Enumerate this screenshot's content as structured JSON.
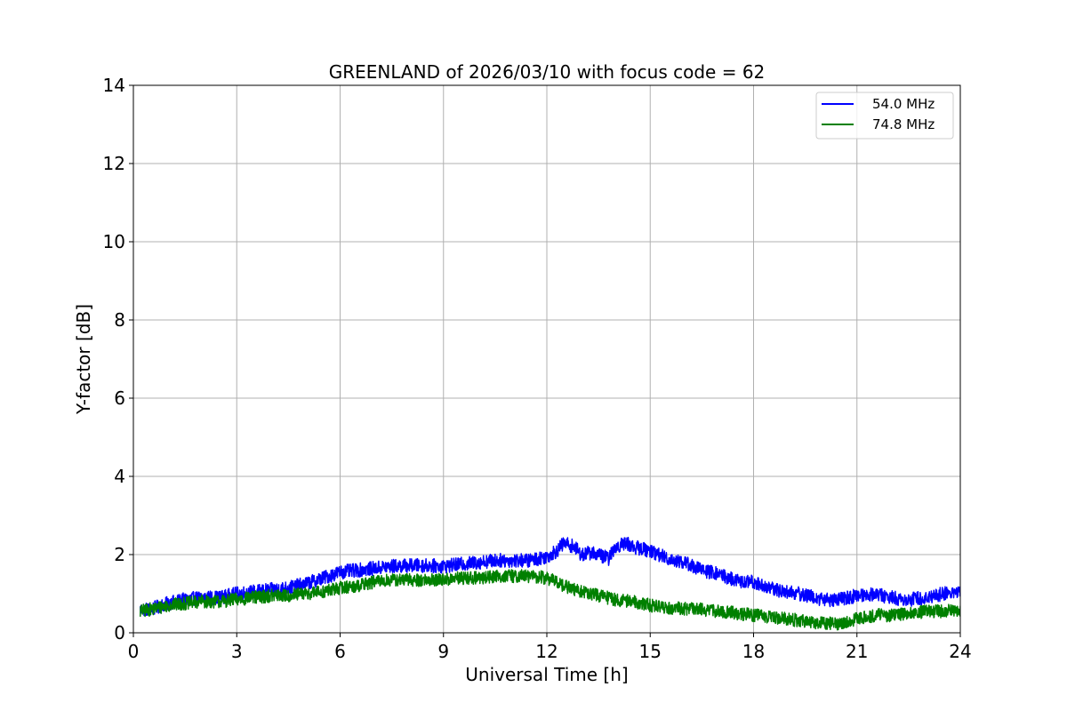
{
  "chart_data": {
    "type": "line",
    "title": "GREENLAND of 2026/03/10 with focus code = 62",
    "xlabel": "Universal Time [h]",
    "ylabel": "Y-factor [dB]",
    "xlim": [
      0,
      24
    ],
    "ylim": [
      0,
      14
    ],
    "xticks": [
      0,
      3,
      6,
      9,
      12,
      15,
      18,
      21,
      24
    ],
    "yticks": [
      0,
      2,
      4,
      6,
      8,
      10,
      12,
      14
    ],
    "grid": true,
    "legend_position": "top-right",
    "series": [
      {
        "name": "54.0 MHz",
        "color": "#0000ff",
        "noise_amplitude": 0.18,
        "x": [
          0.2,
          0.5,
          1,
          1.5,
          2,
          2.5,
          3,
          3.5,
          4,
          4.5,
          5,
          5.5,
          6,
          6.5,
          7,
          7.5,
          8,
          8.5,
          9,
          9.5,
          10,
          10.5,
          11,
          11.5,
          12,
          12.3,
          12.5,
          12.8,
          13,
          13.3,
          13.5,
          13.8,
          14,
          14.3,
          14.5,
          15,
          15.5,
          16,
          16.5,
          17,
          17.3,
          17.6,
          18,
          18.3,
          18.6,
          19,
          19.3,
          19.6,
          20,
          20.5,
          21,
          21.5,
          22,
          22.5,
          23,
          23.5,
          24
        ],
        "y": [
          0.6,
          0.6,
          0.75,
          0.85,
          0.9,
          0.9,
          1.0,
          1.05,
          1.1,
          1.15,
          1.25,
          1.4,
          1.55,
          1.6,
          1.65,
          1.7,
          1.72,
          1.72,
          1.7,
          1.75,
          1.8,
          1.85,
          1.85,
          1.85,
          1.95,
          2.1,
          2.3,
          2.2,
          2.0,
          2.05,
          2.0,
          1.9,
          2.2,
          2.3,
          2.2,
          2.1,
          1.9,
          1.8,
          1.6,
          1.5,
          1.4,
          1.3,
          1.3,
          1.2,
          1.1,
          1.05,
          1.0,
          0.95,
          0.85,
          0.85,
          0.95,
          1.0,
          0.9,
          0.85,
          0.9,
          1.0,
          1.05
        ]
      },
      {
        "name": "74.8 MHz",
        "color": "#008000",
        "noise_amplitude": 0.17,
        "x": [
          0.2,
          0.5,
          1,
          1.5,
          2,
          2.5,
          3,
          3.5,
          4,
          4.5,
          5,
          5.5,
          6,
          6.5,
          7,
          7.5,
          8,
          8.5,
          9,
          9.5,
          10,
          10.5,
          11,
          11.5,
          12,
          12.3,
          12.5,
          12.8,
          13,
          13.5,
          14,
          14.5,
          15,
          15.5,
          16,
          16.5,
          17,
          17.5,
          18,
          18.5,
          19,
          19.5,
          20,
          20.5,
          21,
          21.5,
          22,
          22.5,
          23,
          23.5,
          24
        ],
        "y": [
          0.55,
          0.6,
          0.7,
          0.75,
          0.8,
          0.8,
          0.85,
          0.9,
          0.95,
          0.95,
          1.0,
          1.05,
          1.15,
          1.2,
          1.3,
          1.35,
          1.35,
          1.35,
          1.35,
          1.4,
          1.4,
          1.45,
          1.45,
          1.45,
          1.4,
          1.3,
          1.2,
          1.1,
          1.05,
          0.95,
          0.85,
          0.8,
          0.7,
          0.65,
          0.62,
          0.6,
          0.55,
          0.5,
          0.45,
          0.4,
          0.35,
          0.3,
          0.25,
          0.22,
          0.35,
          0.45,
          0.45,
          0.5,
          0.55,
          0.55,
          0.6
        ]
      }
    ]
  }
}
